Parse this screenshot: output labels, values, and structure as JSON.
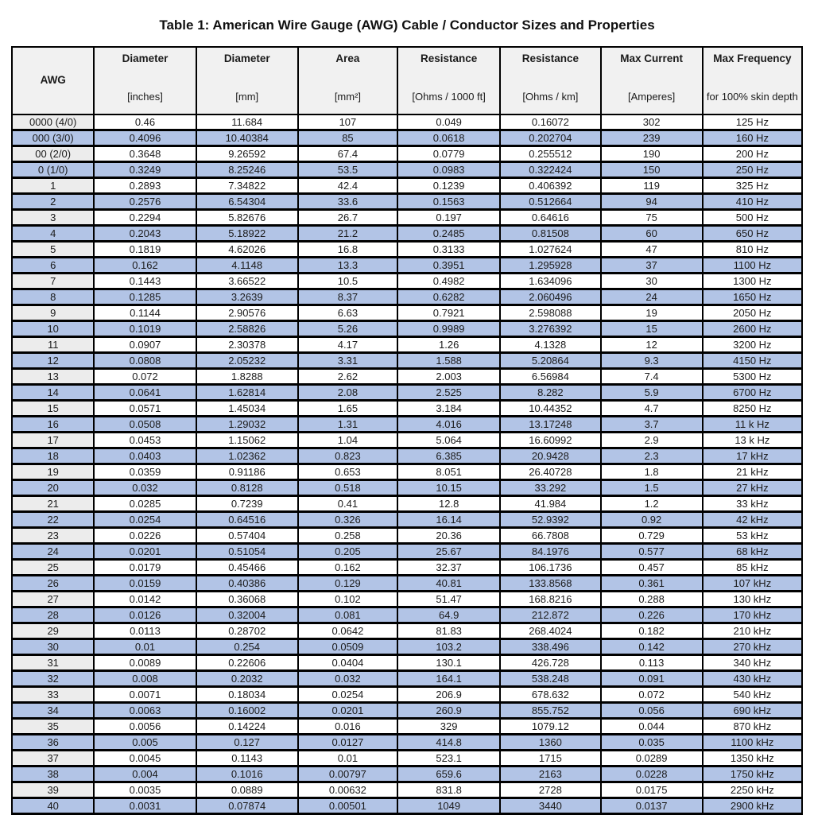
{
  "title": "Table 1: American Wire Gauge (AWG) Cable / Conductor Sizes and Properties",
  "colors": {
    "row_blue": "#b2c4e6",
    "row_white": "#ffffff",
    "awg_gray": "#ececec",
    "header_gray": "#f1f1f1",
    "border": "#000000"
  },
  "table": {
    "columns": [
      {
        "label": "AWG",
        "unit": ""
      },
      {
        "label": "Diameter",
        "unit": "[inches]"
      },
      {
        "label": "Diameter",
        "unit": "[mm]"
      },
      {
        "label": "Area",
        "unit": "[mm²]"
      },
      {
        "label": "Resistance",
        "unit": "[Ohms / 1000 ft]"
      },
      {
        "label": "Resistance",
        "unit": "[Ohms / km]"
      },
      {
        "label": "Max Current",
        "unit": "[Amperes]"
      },
      {
        "label": "Max Frequency",
        "unit": "for 100% skin depth"
      }
    ],
    "rows": [
      [
        "0000 (4/0)",
        "0.46",
        "11.684",
        "107",
        "0.049",
        "0.16072",
        "302",
        "125 Hz"
      ],
      [
        "000 (3/0)",
        "0.4096",
        "10.40384",
        "85",
        "0.0618",
        "0.202704",
        "239",
        "160 Hz"
      ],
      [
        "00 (2/0)",
        "0.3648",
        "9.26592",
        "67.4",
        "0.0779",
        "0.255512",
        "190",
        "200 Hz"
      ],
      [
        "0 (1/0)",
        "0.3249",
        "8.25246",
        "53.5",
        "0.0983",
        "0.322424",
        "150",
        "250 Hz"
      ],
      [
        "1",
        "0.2893",
        "7.34822",
        "42.4",
        "0.1239",
        "0.406392",
        "119",
        "325 Hz"
      ],
      [
        "2",
        "0.2576",
        "6.54304",
        "33.6",
        "0.1563",
        "0.512664",
        "94",
        "410 Hz"
      ],
      [
        "3",
        "0.2294",
        "5.82676",
        "26.7",
        "0.197",
        "0.64616",
        "75",
        "500 Hz"
      ],
      [
        "4",
        "0.2043",
        "5.18922",
        "21.2",
        "0.2485",
        "0.81508",
        "60",
        "650 Hz"
      ],
      [
        "5",
        "0.1819",
        "4.62026",
        "16.8",
        "0.3133",
        "1.027624",
        "47",
        "810 Hz"
      ],
      [
        "6",
        "0.162",
        "4.1148",
        "13.3",
        "0.3951",
        "1.295928",
        "37",
        "1100 Hz"
      ],
      [
        "7",
        "0.1443",
        "3.66522",
        "10.5",
        "0.4982",
        "1.634096",
        "30",
        "1300 Hz"
      ],
      [
        "8",
        "0.1285",
        "3.2639",
        "8.37",
        "0.6282",
        "2.060496",
        "24",
        "1650 Hz"
      ],
      [
        "9",
        "0.1144",
        "2.90576",
        "6.63",
        "0.7921",
        "2.598088",
        "19",
        "2050 Hz"
      ],
      [
        "10",
        "0.1019",
        "2.58826",
        "5.26",
        "0.9989",
        "3.276392",
        "15",
        "2600 Hz"
      ],
      [
        "11",
        "0.0907",
        "2.30378",
        "4.17",
        "1.26",
        "4.1328",
        "12",
        "3200 Hz"
      ],
      [
        "12",
        "0.0808",
        "2.05232",
        "3.31",
        "1.588",
        "5.20864",
        "9.3",
        "4150 Hz"
      ],
      [
        "13",
        "0.072",
        "1.8288",
        "2.62",
        "2.003",
        "6.56984",
        "7.4",
        "5300 Hz"
      ],
      [
        "14",
        "0.0641",
        "1.62814",
        "2.08",
        "2.525",
        "8.282",
        "5.9",
        "6700 Hz"
      ],
      [
        "15",
        "0.0571",
        "1.45034",
        "1.65",
        "3.184",
        "10.44352",
        "4.7",
        "8250 Hz"
      ],
      [
        "16",
        "0.0508",
        "1.29032",
        "1.31",
        "4.016",
        "13.17248",
        "3.7",
        "11 k Hz"
      ],
      [
        "17",
        "0.0453",
        "1.15062",
        "1.04",
        "5.064",
        "16.60992",
        "2.9",
        "13 k Hz"
      ],
      [
        "18",
        "0.0403",
        "1.02362",
        "0.823",
        "6.385",
        "20.9428",
        "2.3",
        "17 kHz"
      ],
      [
        "19",
        "0.0359",
        "0.91186",
        "0.653",
        "8.051",
        "26.40728",
        "1.8",
        "21 kHz"
      ],
      [
        "20",
        "0.032",
        "0.8128",
        "0.518",
        "10.15",
        "33.292",
        "1.5",
        "27 kHz"
      ],
      [
        "21",
        "0.0285",
        "0.7239",
        "0.41",
        "12.8",
        "41.984",
        "1.2",
        "33 kHz"
      ],
      [
        "22",
        "0.0254",
        "0.64516",
        "0.326",
        "16.14",
        "52.9392",
        "0.92",
        "42 kHz"
      ],
      [
        "23",
        "0.0226",
        "0.57404",
        "0.258",
        "20.36",
        "66.7808",
        "0.729",
        "53 kHz"
      ],
      [
        "24",
        "0.0201",
        "0.51054",
        "0.205",
        "25.67",
        "84.1976",
        "0.577",
        "68 kHz"
      ],
      [
        "25",
        "0.0179",
        "0.45466",
        "0.162",
        "32.37",
        "106.1736",
        "0.457",
        "85 kHz"
      ],
      [
        "26",
        "0.0159",
        "0.40386",
        "0.129",
        "40.81",
        "133.8568",
        "0.361",
        "107 kHz"
      ],
      [
        "27",
        "0.0142",
        "0.36068",
        "0.102",
        "51.47",
        "168.8216",
        "0.288",
        "130 kHz"
      ],
      [
        "28",
        "0.0126",
        "0.32004",
        "0.081",
        "64.9",
        "212.872",
        "0.226",
        "170 kHz"
      ],
      [
        "29",
        "0.0113",
        "0.28702",
        "0.0642",
        "81.83",
        "268.4024",
        "0.182",
        "210 kHz"
      ],
      [
        "30",
        "0.01",
        "0.254",
        "0.0509",
        "103.2",
        "338.496",
        "0.142",
        "270 kHz"
      ],
      [
        "31",
        "0.0089",
        "0.22606",
        "0.0404",
        "130.1",
        "426.728",
        "0.113",
        "340 kHz"
      ],
      [
        "32",
        "0.008",
        "0.2032",
        "0.032",
        "164.1",
        "538.248",
        "0.091",
        "430 kHz"
      ],
      [
        "33",
        "0.0071",
        "0.18034",
        "0.0254",
        "206.9",
        "678.632",
        "0.072",
        "540 kHz"
      ],
      [
        "34",
        "0.0063",
        "0.16002",
        "0.0201",
        "260.9",
        "855.752",
        "0.056",
        "690 kHz"
      ],
      [
        "35",
        "0.0056",
        "0.14224",
        "0.016",
        "329",
        "1079.12",
        "0.044",
        "870 kHz"
      ],
      [
        "36",
        "0.005",
        "0.127",
        "0.0127",
        "414.8",
        "1360",
        "0.035",
        "1100 kHz"
      ],
      [
        "37",
        "0.0045",
        "0.1143",
        "0.01",
        "523.1",
        "1715",
        "0.0289",
        "1350 kHz"
      ],
      [
        "38",
        "0.004",
        "0.1016",
        "0.00797",
        "659.6",
        "2163",
        "0.0228",
        "1750 kHz"
      ],
      [
        "39",
        "0.0035",
        "0.0889",
        "0.00632",
        "831.8",
        "2728",
        "0.0175",
        "2250 kHz"
      ],
      [
        "40",
        "0.0031",
        "0.07874",
        "0.00501",
        "1049",
        "3440",
        "0.0137",
        "2900 kHz"
      ]
    ]
  }
}
